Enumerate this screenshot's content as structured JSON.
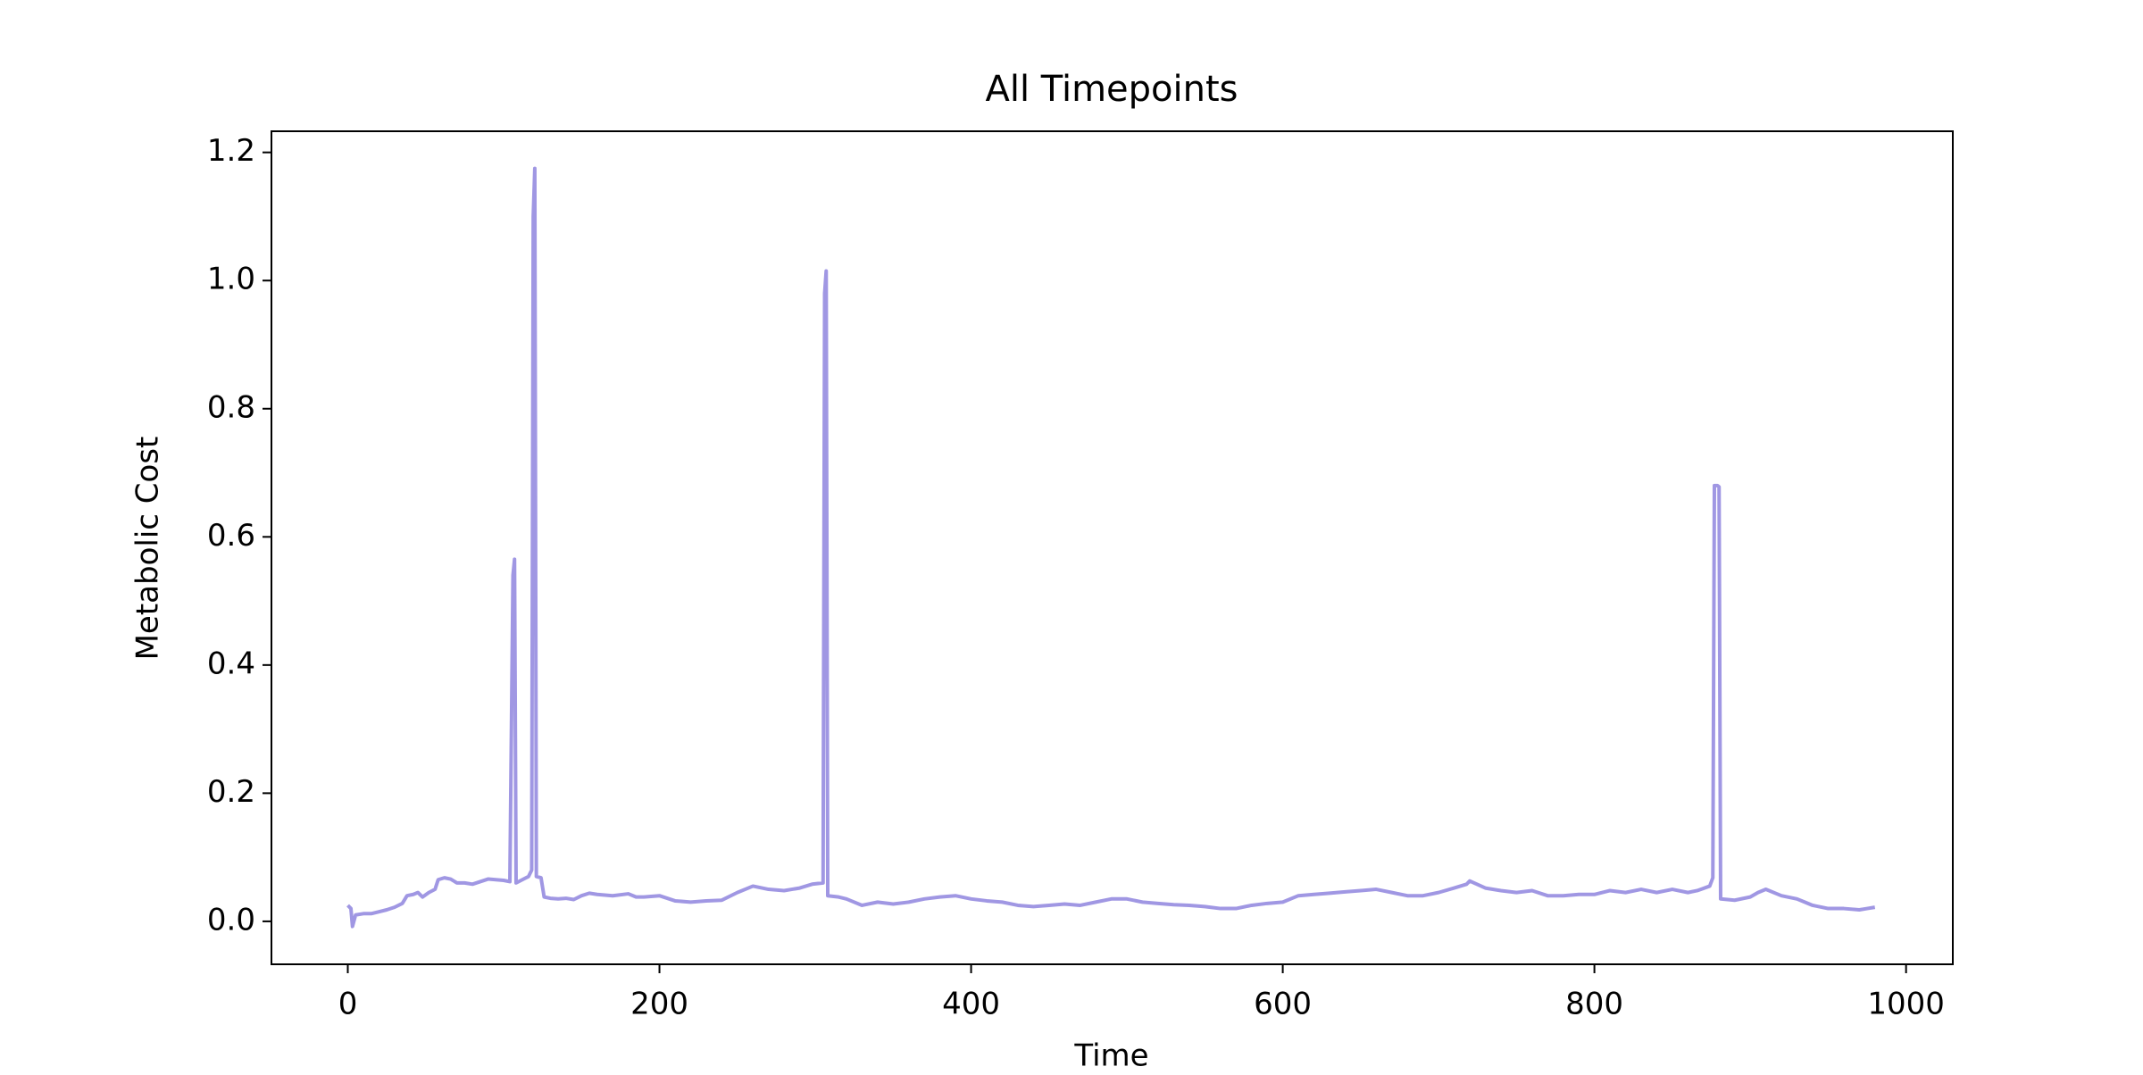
{
  "chart_data": {
    "type": "line",
    "title": "All Timepoints",
    "x_label": "Time",
    "y_label": "Metabolic Cost",
    "x": [
      0,
      2,
      3,
      5,
      10,
      15,
      20,
      25,
      30,
      35,
      38,
      42,
      45,
      48,
      52,
      56,
      58,
      62,
      66,
      70,
      75,
      80,
      85,
      90,
      95,
      100,
      104,
      106,
      107,
      108,
      112,
      116,
      118,
      119,
      120,
      121,
      124,
      126,
      130,
      135,
      140,
      145,
      150,
      155,
      160,
      170,
      180,
      185,
      190,
      200,
      210,
      220,
      230,
      240,
      250,
      260,
      270,
      280,
      290,
      298,
      305,
      306,
      307,
      308,
      315,
      320,
      330,
      340,
      350,
      360,
      370,
      380,
      390,
      400,
      410,
      420,
      430,
      440,
      450,
      460,
      470,
      480,
      490,
      500,
      510,
      520,
      530,
      540,
      550,
      560,
      570,
      580,
      590,
      600,
      610,
      620,
      630,
      640,
      650,
      660,
      670,
      680,
      690,
      700,
      710,
      718,
      720,
      730,
      740,
      750,
      760,
      770,
      780,
      790,
      800,
      810,
      820,
      830,
      840,
      850,
      860,
      866,
      874,
      876,
      877,
      879,
      880,
      881,
      890,
      900,
      905,
      910,
      920,
      930,
      935,
      940,
      950,
      960,
      970,
      975,
      980
    ],
    "series": [
      {
        "name": "Metabolic Cost",
        "color": "#a097e3",
        "values": [
          0.025,
          0.02,
          -0.008,
          0.01,
          0.012,
          0.012,
          0.015,
          0.018,
          0.022,
          0.028,
          0.04,
          0.042,
          0.045,
          0.038,
          0.045,
          0.05,
          0.065,
          0.068,
          0.066,
          0.06,
          0.06,
          0.058,
          0.062,
          0.066,
          0.065,
          0.064,
          0.062,
          0.54,
          0.565,
          0.06,
          0.065,
          0.07,
          0.08,
          1.1,
          1.175,
          0.07,
          0.068,
          0.038,
          0.036,
          0.035,
          0.036,
          0.034,
          0.04,
          0.044,
          0.042,
          0.04,
          0.043,
          0.038,
          0.038,
          0.04,
          0.032,
          0.03,
          0.032,
          0.033,
          0.045,
          0.055,
          0.05,
          0.048,
          0.052,
          0.058,
          0.06,
          0.98,
          1.015,
          0.04,
          0.038,
          0.035,
          0.025,
          0.03,
          0.027,
          0.03,
          0.035,
          0.038,
          0.04,
          0.035,
          0.032,
          0.03,
          0.025,
          0.023,
          0.025,
          0.027,
          0.025,
          0.03,
          0.035,
          0.035,
          0.03,
          0.028,
          0.026,
          0.025,
          0.023,
          0.02,
          0.02,
          0.025,
          0.028,
          0.03,
          0.04,
          0.042,
          0.044,
          0.046,
          0.048,
          0.05,
          0.045,
          0.04,
          0.04,
          0.045,
          0.052,
          0.058,
          0.063,
          0.052,
          0.048,
          0.045,
          0.048,
          0.04,
          0.04,
          0.042,
          0.042,
          0.048,
          0.045,
          0.05,
          0.045,
          0.05,
          0.045,
          0.048,
          0.055,
          0.068,
          0.68,
          0.68,
          0.678,
          0.035,
          0.033,
          0.038,
          0.045,
          0.05,
          0.04,
          0.035,
          0.03,
          0.025,
          0.02,
          0.02,
          0.018,
          0.02,
          0.022
        ]
      }
    ],
    "xlim": [
      -49,
      1030
    ],
    "ylim": [
      -0.067,
      1.233
    ],
    "xticks": [
      0,
      200,
      400,
      600,
      800,
      1000
    ],
    "yticks": [
      {
        "value": 0,
        "label": "0.0"
      },
      0.2,
      0.4,
      0.6,
      0.8,
      {
        "value": 1,
        "label": "1.0"
      },
      1.2
    ]
  }
}
